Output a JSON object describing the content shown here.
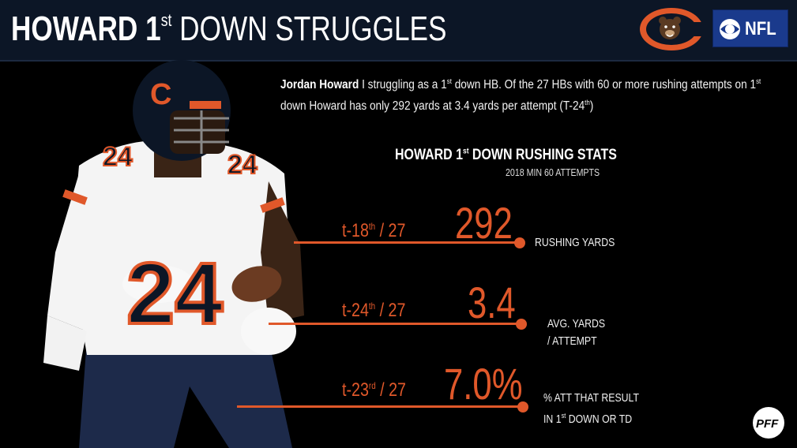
{
  "header": {
    "title_part1": "HOWARD 1",
    "title_sup": "st",
    "title_part2": " DOWN STRUGGLES",
    "nfl_label": "NFL",
    "colors": {
      "background": "#0c1626",
      "accent": "#e0582a",
      "network_blue": "#1a3a8c"
    }
  },
  "description": {
    "name": "Jordan Howard",
    "text_a": " I struggling as a 1",
    "sup_a": "st",
    "text_b": " down HB. Of the 27 HBs with 60 or more rushing attempts on 1",
    "sup_b": "st",
    "text_c": " down Howard has only 292 yards at 3.4 yards per attempt (T-24",
    "sup_c": "th",
    "text_d": ")"
  },
  "stats_header": {
    "title_a": "HOWARD 1",
    "title_sup": "st",
    "title_b": " DOWN RUSHING STATS",
    "subtitle": "2018  MIN 60 ATTEMPTS"
  },
  "stats": [
    {
      "rank_prefix": "t-18",
      "rank_sup": "th",
      "rank_suffix": " / 27",
      "value": "292",
      "label_line1": "RUSHING YARDS",
      "label_line2": ""
    },
    {
      "rank_prefix": "t-24",
      "rank_sup": "th",
      "rank_suffix": " / 27",
      "value": "3.4",
      "label_line1": "AVG. YARDS",
      "label_line2": "/ ATTEMPT"
    },
    {
      "rank_prefix": "t-23",
      "rank_sup": "rd",
      "rank_suffix": " / 27",
      "value": "7.0%",
      "label_line1": "% ATT THAT RESULT",
      "label_line2_a": "IN 1",
      "label_line2_sup": "st",
      "label_line2_b": " DOWN OR TD"
    }
  ],
  "icons": {
    "team_logo": "chicago-bears-logo",
    "network_logo": "cbs-eye-icon",
    "brand_logo": "pff-logo",
    "player": "player-photo"
  }
}
